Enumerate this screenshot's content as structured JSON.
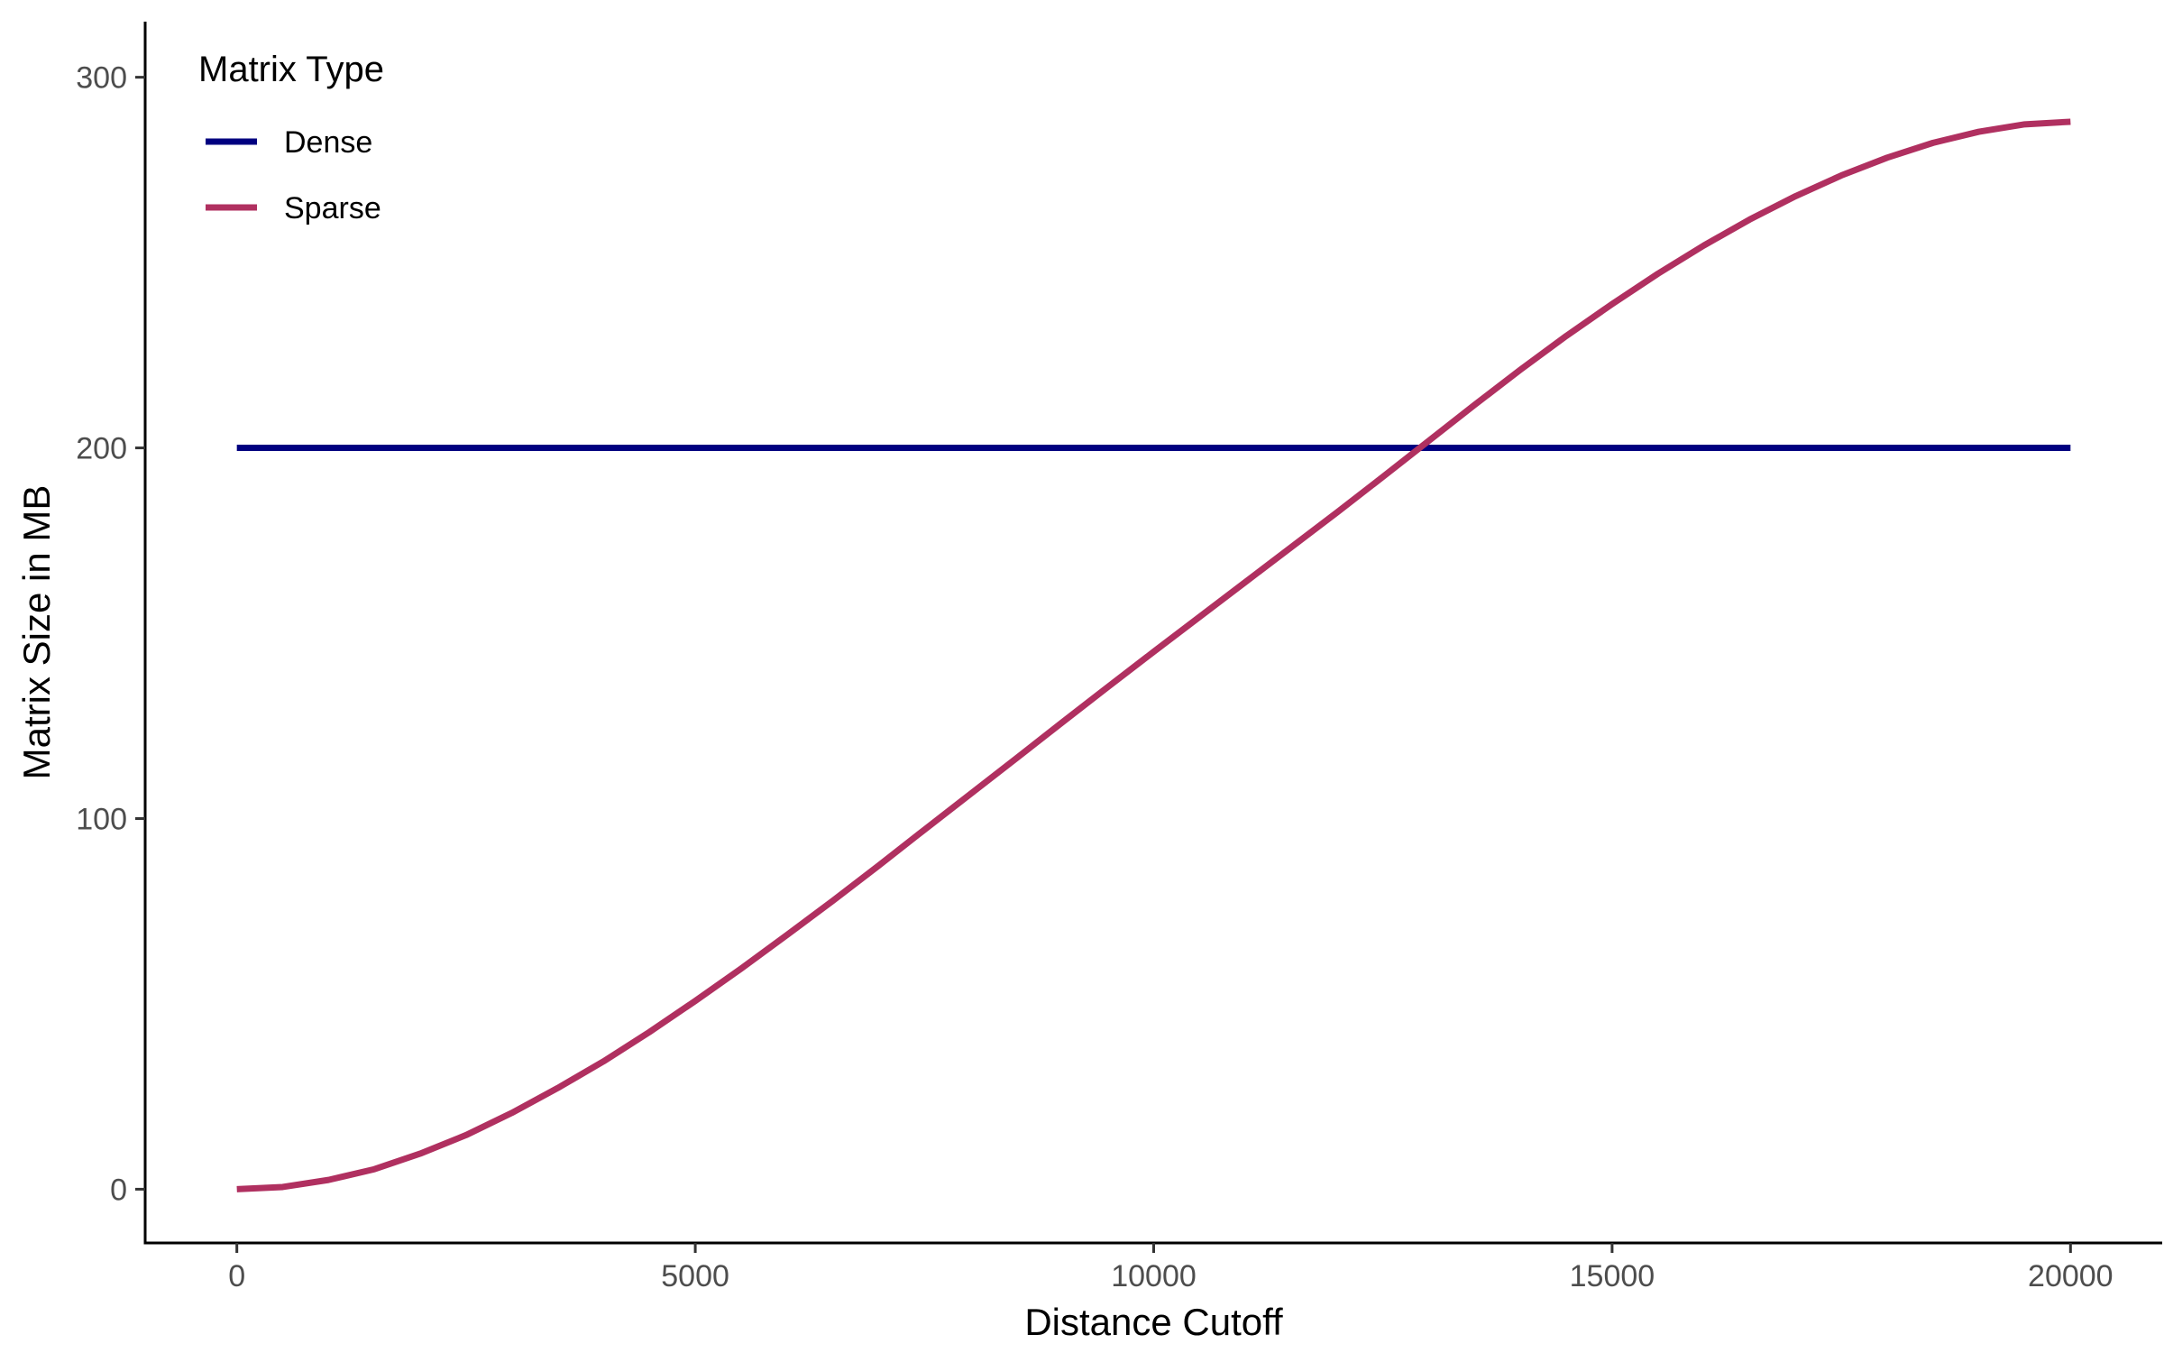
{
  "chart_data": {
    "type": "line",
    "title": "",
    "xlabel": "Distance Cutoff",
    "ylabel": "Matrix Size in MB",
    "xlim": [
      -1000,
      21000
    ],
    "ylim": [
      -14.5,
      315
    ],
    "x_ticks": [
      0,
      5000,
      10000,
      15000,
      20000
    ],
    "x_tick_labels": [
      "0",
      "5000",
      "10000",
      "15000",
      "20000"
    ],
    "y_ticks": [
      0,
      100,
      200,
      300
    ],
    "y_tick_labels": [
      "0",
      "100",
      "200",
      "300"
    ],
    "grid": false,
    "legend": {
      "title": "Matrix Type",
      "placement": "top-left"
    },
    "series": [
      {
        "name": "Dense",
        "color": "#000080",
        "x": [
          0,
          20000
        ],
        "y": [
          200,
          200
        ]
      },
      {
        "name": "Sparse",
        "color": "#B03060",
        "x": [
          0,
          500,
          1000,
          1500,
          2000,
          2500,
          3000,
          3500,
          4000,
          4500,
          5000,
          5500,
          6000,
          6500,
          7000,
          7500,
          8000,
          8500,
          9000,
          9500,
          10000,
          10500,
          11000,
          11500,
          12000,
          12500,
          13000,
          13500,
          14000,
          14500,
          15000,
          15500,
          16000,
          16500,
          17000,
          17500,
          18000,
          18500,
          19000,
          19500,
          20000
        ],
        "y": [
          0,
          0.6,
          2.5,
          5.4,
          9.6,
          14.6,
          20.6,
          27.3,
          34.5,
          42.4,
          50.8,
          59.5,
          68.6,
          77.8,
          87.3,
          97.0,
          106.6,
          116.2,
          125.9,
          135.5,
          145.0,
          154.4,
          163.8,
          173.2,
          182.6,
          192.2,
          201.9,
          211.6,
          221.1,
          230.2,
          238.8,
          247.0,
          254.6,
          261.6,
          267.9,
          273.5,
          278.3,
          282.3,
          285.3,
          287.3,
          288.0
        ]
      }
    ]
  }
}
